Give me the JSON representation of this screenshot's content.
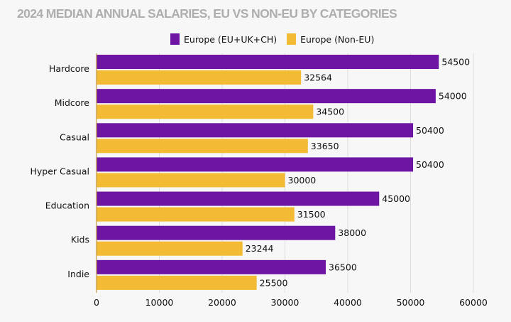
{
  "chart_data": {
    "type": "bar",
    "orientation": "horizontal",
    "title": "2024 MEDIAN ANNUAL SALARIES, EU VS NON-EU BY CATEGORIES",
    "xlabel": "",
    "ylabel": "",
    "categories": [
      "Hardcore",
      "Midcore",
      "Casual",
      "Hyper Casual",
      "Education",
      "Kids",
      "Indie"
    ],
    "series": [
      {
        "name": "Europe (EU+UK+CH)",
        "color": "#6e16a3",
        "values": [
          54500,
          54000,
          50400,
          50400,
          45000,
          38000,
          36500
        ]
      },
      {
        "name": "Europe (Non-EU)",
        "color": "#f3bb33",
        "values": [
          32564,
          34500,
          33650,
          30000,
          31500,
          23244,
          25500
        ]
      }
    ],
    "xlim": [
      0,
      60000
    ],
    "xticks": [
      "0",
      "10000",
      "20000",
      "30000",
      "40000",
      "50000",
      "60000"
    ],
    "grid": true,
    "legend_position": "top"
  }
}
